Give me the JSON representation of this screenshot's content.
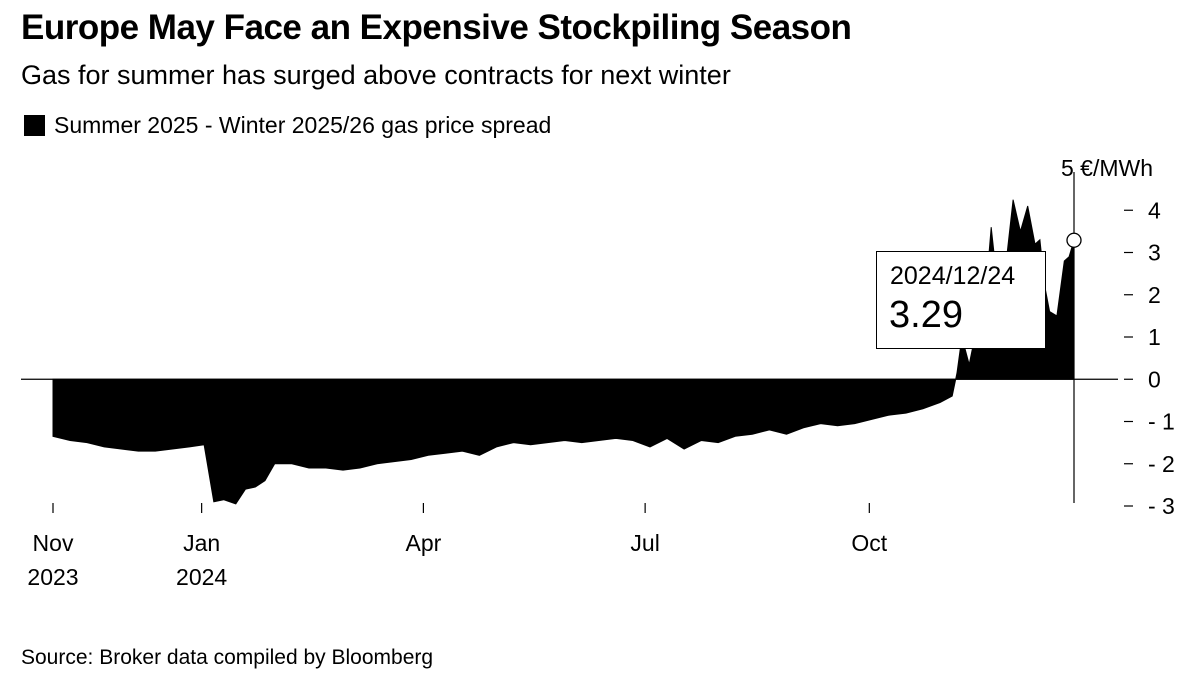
{
  "header": {
    "title": "Europe May Face an Expensive Stockpiling Season",
    "subtitle": "Gas for summer has surged above contracts for next winter"
  },
  "legend": {
    "label": "Summer 2025 - Winter 2025/26 gas price spread",
    "color": "#000000"
  },
  "tooltip": {
    "date": "2024/12/24",
    "value": "3.29"
  },
  "source": "Source: Broker data compiled by Bloomberg",
  "chart_data": {
    "type": "area",
    "title": "Europe May Face an Expensive Stockpiling Season",
    "subtitle": "Gas for summer has surged above contracts for next winter",
    "series_name": "Summer 2025 - Winter 2025/26 gas price spread",
    "unit": "€/MWh",
    "x_ticks": [
      {
        "date": "2023-11-01",
        "lines": [
          "Nov",
          "2023"
        ]
      },
      {
        "date": "2024-01-01",
        "lines": [
          "Jan",
          "2024"
        ]
      },
      {
        "date": "2024-04-01",
        "lines": [
          "Apr"
        ]
      },
      {
        "date": "2024-07-01",
        "lines": [
          "Jul"
        ]
      },
      {
        "date": "2024-10-01",
        "lines": [
          "Oct"
        ]
      }
    ],
    "y_ticks": [
      -3,
      -2,
      -1,
      0,
      1,
      2,
      3,
      4,
      5
    ],
    "y_top_label": "5 €/MWh",
    "ylim": [
      -3,
      5
    ],
    "xlim": [
      "2023-11-01",
      "2024-12-24"
    ],
    "color": "#000000",
    "highlight": {
      "date": "2024-12-24",
      "value": 3.29
    },
    "x": [
      "2023-11-01",
      "2023-11-08",
      "2023-11-15",
      "2023-11-22",
      "2023-11-29",
      "2023-12-06",
      "2023-12-13",
      "2023-12-20",
      "2023-12-27",
      "2024-01-02",
      "2024-01-06",
      "2024-01-10",
      "2024-01-15",
      "2024-01-19",
      "2024-01-23",
      "2024-01-27",
      "2024-01-31",
      "2024-02-07",
      "2024-02-14",
      "2024-02-21",
      "2024-02-28",
      "2024-03-06",
      "2024-03-13",
      "2024-03-20",
      "2024-03-27",
      "2024-04-03",
      "2024-04-10",
      "2024-04-17",
      "2024-04-24",
      "2024-05-01",
      "2024-05-08",
      "2024-05-15",
      "2024-05-22",
      "2024-05-29",
      "2024-06-05",
      "2024-06-12",
      "2024-06-19",
      "2024-06-26",
      "2024-07-03",
      "2024-07-10",
      "2024-07-17",
      "2024-07-24",
      "2024-07-31",
      "2024-08-07",
      "2024-08-14",
      "2024-08-21",
      "2024-08-28",
      "2024-09-04",
      "2024-09-11",
      "2024-09-18",
      "2024-09-25",
      "2024-10-02",
      "2024-10-09",
      "2024-10-16",
      "2024-10-23",
      "2024-10-30",
      "2024-11-04",
      "2024-11-06",
      "2024-11-08",
      "2024-11-11",
      "2024-11-14",
      "2024-11-17",
      "2024-11-20",
      "2024-11-23",
      "2024-11-26",
      "2024-11-29",
      "2024-12-02",
      "2024-12-05",
      "2024-12-08",
      "2024-12-10",
      "2024-12-12",
      "2024-12-14",
      "2024-12-17",
      "2024-12-20",
      "2024-12-22",
      "2024-12-24"
    ],
    "values": [
      -1.35,
      -1.45,
      -1.5,
      -1.6,
      -1.65,
      -1.7,
      -1.7,
      -1.65,
      -1.6,
      -1.55,
      -2.9,
      -2.85,
      -2.95,
      -2.6,
      -2.55,
      -2.4,
      -2.0,
      -2.0,
      -2.1,
      -2.1,
      -2.15,
      -2.1,
      -2.0,
      -1.95,
      -1.9,
      -1.8,
      -1.75,
      -1.7,
      -1.8,
      -1.6,
      -1.5,
      -1.55,
      -1.5,
      -1.45,
      -1.5,
      -1.45,
      -1.4,
      -1.45,
      -1.6,
      -1.4,
      -1.65,
      -1.45,
      -1.5,
      -1.35,
      -1.3,
      -1.2,
      -1.3,
      -1.15,
      -1.05,
      -1.1,
      -1.05,
      -0.95,
      -0.85,
      -0.8,
      -0.7,
      -0.55,
      -0.4,
      0.15,
      1.0,
      0.35,
      1.2,
      1.5,
      3.6,
      2.0,
      2.7,
      4.25,
      3.5,
      4.1,
      3.2,
      3.3,
      2.2,
      1.6,
      1.5,
      2.8,
      2.9,
      3.29
    ]
  }
}
